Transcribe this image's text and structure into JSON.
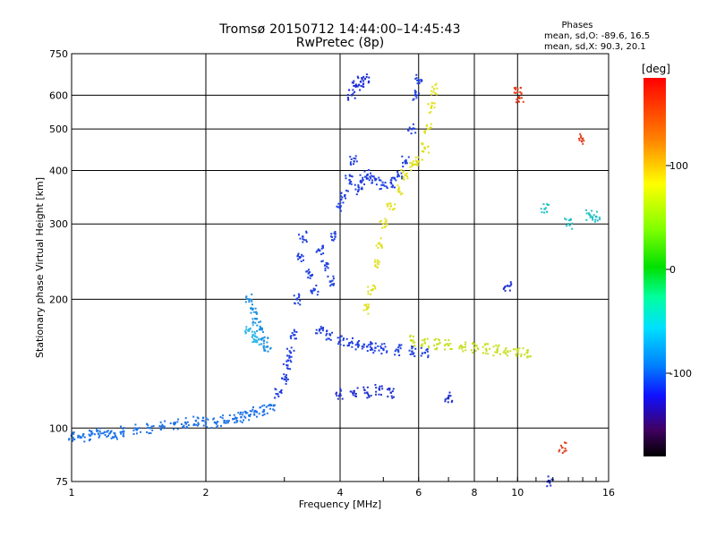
{
  "header": {
    "title_line1": "Tromsø 20150712 14:44:00–14:45:43",
    "title_line2": "RwPretec (8p)"
  },
  "stats": {
    "title": "Phases",
    "line_o": "mean, sd,O: -89.6, 16.5",
    "line_x": "mean, sd,X:  90.3, 20.1"
  },
  "colorbar": {
    "label": "[deg]",
    "ticks": [
      "100",
      "0",
      "-100"
    ]
  },
  "chart_data": {
    "type": "scatter",
    "title": "Tromsø 20150712 14:44:00–14:45:43",
    "subtitle": "RwPretec (8p)",
    "xlabel": "Frequency [MHz]",
    "ylabel": "Stationary phase Virtual Height [km]",
    "xscale": "log",
    "yscale": "log",
    "xlim": [
      1,
      16
    ],
    "ylim": [
      75,
      750
    ],
    "x_ticks": [
      1,
      2,
      4,
      6,
      8,
      10,
      16
    ],
    "x_tick_labels": [
      "1",
      "2",
      "4",
      "6",
      "8",
      "10",
      "16"
    ],
    "y_ticks": [
      75,
      100,
      200,
      300,
      400,
      500,
      600,
      750
    ],
    "y_tick_labels": [
      "75",
      "100",
      "200",
      "300",
      "400",
      "500",
      "600",
      "750"
    ],
    "grid": true,
    "colorbar_range": [
      -180,
      180
    ],
    "series": [
      {
        "color": "#1e73e8",
        "points": [
          [
            1.0,
            96
          ],
          [
            1.05,
            95
          ],
          [
            1.1,
            96
          ],
          [
            1.15,
            97
          ],
          [
            1.2,
            98
          ],
          [
            1.25,
            97
          ],
          [
            1.3,
            98
          ],
          [
            1.4,
            99
          ],
          [
            1.5,
            100
          ],
          [
            1.6,
            101
          ],
          [
            1.7,
            102
          ],
          [
            1.8,
            103
          ],
          [
            1.9,
            104
          ],
          [
            2.0,
            103
          ],
          [
            2.1,
            103
          ],
          [
            2.2,
            104
          ],
          [
            2.3,
            105
          ],
          [
            2.4,
            106
          ],
          [
            2.5,
            107
          ],
          [
            2.6,
            109
          ],
          [
            2.7,
            110
          ],
          [
            2.8,
            113
          ]
        ]
      },
      {
        "color": "#2040e0",
        "points": [
          [
            2.9,
            120
          ],
          [
            3.0,
            130
          ],
          [
            3.05,
            140
          ],
          [
            3.1,
            150
          ],
          [
            3.15,
            165
          ],
          [
            3.2,
            200
          ],
          [
            3.25,
            250
          ],
          [
            3.3,
            280
          ],
          [
            3.4,
            230
          ],
          [
            3.5,
            210
          ],
          [
            3.6,
            260
          ],
          [
            3.7,
            240
          ],
          [
            3.8,
            220
          ],
          [
            3.9,
            280
          ],
          [
            4.0,
            330
          ],
          [
            4.1,
            350
          ],
          [
            4.2,
            380
          ],
          [
            4.3,
            420
          ],
          [
            4.4,
            360
          ],
          [
            4.5,
            380
          ],
          [
            4.6,
            390
          ],
          [
            4.8,
            380
          ],
          [
            5.0,
            370
          ],
          [
            5.2,
            375
          ],
          [
            5.4,
            390
          ],
          [
            5.6,
            420
          ],
          [
            5.8,
            500
          ],
          [
            5.9,
            600
          ],
          [
            6.0,
            650
          ]
        ]
      },
      {
        "color": "#2040e0",
        "points": [
          [
            3.6,
            170
          ],
          [
            3.8,
            165
          ],
          [
            4.0,
            160
          ],
          [
            4.2,
            158
          ],
          [
            4.4,
            156
          ],
          [
            4.6,
            155
          ],
          [
            4.8,
            154
          ],
          [
            5.0,
            153
          ],
          [
            5.4,
            152
          ],
          [
            5.8,
            151
          ],
          [
            6.2,
            150
          ]
        ]
      },
      {
        "color": "#1f2ed8",
        "points": [
          [
            4.25,
            600
          ],
          [
            4.35,
            630
          ],
          [
            4.45,
            645
          ],
          [
            4.55,
            655
          ]
        ]
      },
      {
        "color": "#e0e020",
        "points": [
          [
            4.6,
            190
          ],
          [
            4.7,
            210
          ],
          [
            4.8,
            240
          ],
          [
            4.9,
            270
          ],
          [
            5.0,
            300
          ],
          [
            5.2,
            330
          ],
          [
            5.4,
            360
          ],
          [
            5.6,
            390
          ],
          [
            5.8,
            410
          ],
          [
            6.0,
            420
          ],
          [
            6.2,
            450
          ],
          [
            6.3,
            500
          ],
          [
            6.4,
            560
          ],
          [
            6.5,
            620
          ]
        ]
      },
      {
        "color": "#c8e020",
        "points": [
          [
            5.8,
            160
          ],
          [
            6.2,
            158
          ],
          [
            6.6,
            157
          ],
          [
            7.0,
            156
          ],
          [
            7.5,
            155
          ],
          [
            8.0,
            154
          ],
          [
            8.5,
            153
          ],
          [
            9.0,
            152
          ],
          [
            9.5,
            151
          ],
          [
            10.0,
            151
          ],
          [
            10.5,
            150
          ]
        ]
      },
      {
        "color": "#1e90e0",
        "points": [
          [
            2.5,
            200
          ],
          [
            2.55,
            190
          ],
          [
            2.6,
            180
          ],
          [
            2.65,
            170
          ],
          [
            2.7,
            160
          ],
          [
            2.75,
            155
          ]
        ]
      },
      {
        "color": "#2fb8e8",
        "points": [
          [
            2.5,
            170
          ],
          [
            2.55,
            165
          ],
          [
            2.6,
            160
          ]
        ]
      },
      {
        "color": "#e04020",
        "points": [
          [
            10.0,
            610
          ],
          [
            10.1,
            590
          ],
          [
            12.6,
            90
          ],
          [
            14.0,
            475
          ]
        ]
      },
      {
        "color": "#2030d0",
        "points": [
          [
            4.0,
            120
          ],
          [
            4.3,
            122
          ],
          [
            4.6,
            121
          ],
          [
            4.9,
            123
          ],
          [
            5.2,
            121
          ],
          [
            7.0,
            118
          ],
          [
            9.5,
            215
          ],
          [
            11.8,
            75
          ]
        ]
      },
      {
        "color": "#20c0c8",
        "points": [
          [
            11.5,
            325
          ],
          [
            13.0,
            300
          ],
          [
            14.5,
            315
          ],
          [
            15.0,
            312
          ]
        ]
      }
    ]
  }
}
